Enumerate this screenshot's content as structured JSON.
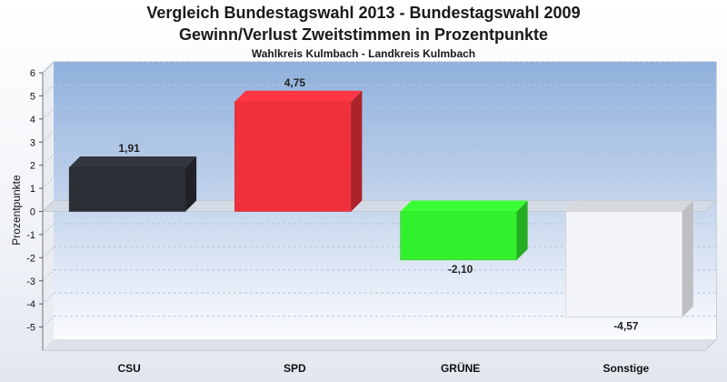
{
  "chart_data": {
    "type": "bar",
    "title": "Vergleich Bundestagswahl 2013 - Bundestagswahl 2009",
    "subtitle": "Gewinn/Verlust Zweitstimmen in Prozentpunkte",
    "subsubtitle": "Wahlkreis Kulmbach - Landkreis Kulmbach",
    "ylabel": "Prozentpunkte",
    "xlabel": "",
    "ylim": [
      -6,
      6
    ],
    "yticks": [
      6,
      5,
      4,
      3,
      2,
      1,
      0,
      -1,
      -2,
      -3,
      -4,
      -5
    ],
    "categories": [
      "CSU",
      "SPD",
      "GRÜNE",
      "Sonstige"
    ],
    "values": [
      1.91,
      4.75,
      -2.1,
      -4.57
    ],
    "value_labels": [
      "1,91",
      "4,75",
      "-2,10",
      "-4,57"
    ],
    "colors": [
      "#2c2f36",
      "#f0303a",
      "#33f02e",
      "#f4f5f9"
    ],
    "legend": false,
    "grid": true
  }
}
